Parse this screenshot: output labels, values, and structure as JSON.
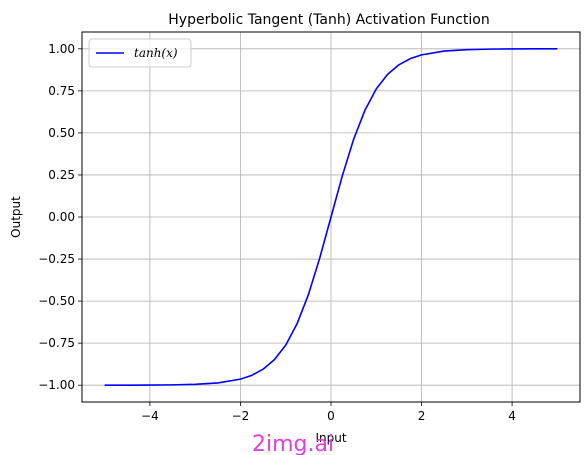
{
  "chart_data": {
    "type": "line",
    "title": "Hyperbolic Tangent (Tanh) Activation Function",
    "xlabel": "Input",
    "ylabel": "Output",
    "xlim": [
      -5.5,
      5.5
    ],
    "ylim": [
      -1.1,
      1.1
    ],
    "x_ticks": [
      -4,
      -2,
      0,
      2,
      4
    ],
    "x_tick_labels": [
      "−4",
      "−2",
      "0",
      "2",
      "4"
    ],
    "y_ticks": [
      -1.0,
      -0.75,
      -0.5,
      -0.25,
      0.0,
      0.25,
      0.5,
      0.75,
      1.0
    ],
    "y_tick_labels": [
      "−1.00",
      "−0.75",
      "−0.50",
      "−0.25",
      "0.00",
      "0.25",
      "0.50",
      "0.75",
      "1.00"
    ],
    "grid": true,
    "legend_position": "top-left",
    "series": [
      {
        "name": "tanh(x)",
        "color": "#0000ff",
        "x": [
          -5.0,
          -4.5,
          -4.0,
          -3.5,
          -3.0,
          -2.5,
          -2.0,
          -1.75,
          -1.5,
          -1.25,
          -1.0,
          -0.75,
          -0.5,
          -0.25,
          0.0,
          0.25,
          0.5,
          0.75,
          1.0,
          1.25,
          1.5,
          1.75,
          2.0,
          2.5,
          3.0,
          3.5,
          4.0,
          4.5,
          5.0
        ],
        "y": [
          -0.9999,
          -0.9998,
          -0.9993,
          -0.9982,
          -0.9951,
          -0.9866,
          -0.964,
          -0.9414,
          -0.9051,
          -0.8483,
          -0.7616,
          -0.6351,
          -0.4621,
          -0.2449,
          0.0,
          0.2449,
          0.4621,
          0.6351,
          0.7616,
          0.8483,
          0.9051,
          0.9414,
          0.964,
          0.9866,
          0.9951,
          0.9982,
          0.9993,
          0.9998,
          0.9999
        ]
      }
    ]
  },
  "watermark": {
    "text": "2img.ai",
    "color": "#e040e0"
  }
}
